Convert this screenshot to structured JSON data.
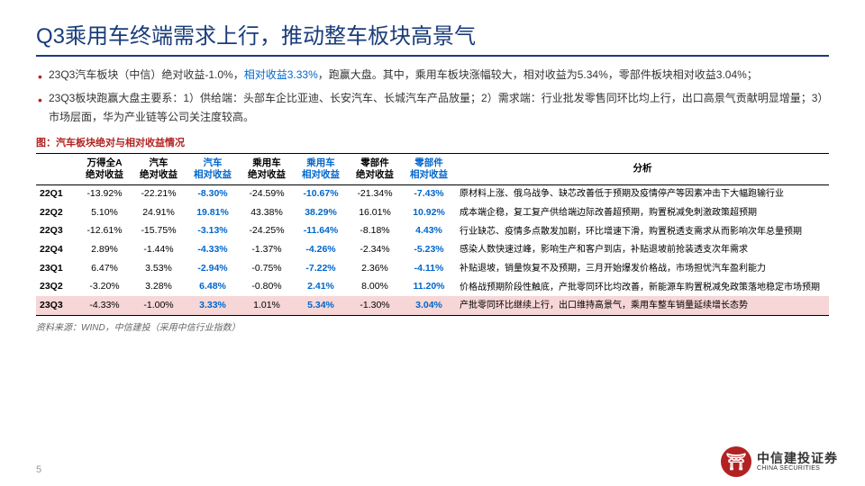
{
  "title": "Q3乘用车终端需求上行，推动整车板块高景气",
  "bullets": [
    {
      "pre": "23Q3汽车板块（中信）绝对收益-1.0%，",
      "hl": "相对收益3.33%",
      "post": "，跑赢大盘。其中，乘用车板块涨幅较大，相对收益为5.34%，零部件板块相对收益3.04%；"
    },
    {
      "pre": "23Q3板块跑赢大盘主要系：1）供给端：头部车企比亚迪、长安汽车、长城汽车产品放量；2）需求端：行业批发零售同环比均上行，出口高景气贡献明显增量；3）市场层面，华为产业链等公司关注度较高。",
      "hl": "",
      "post": ""
    }
  ],
  "chart_label": "图：汽车板块绝对与相对收益情况",
  "table": {
    "headers": [
      {
        "text": "",
        "blue": false
      },
      {
        "text": "万得全A\n绝对收益",
        "blue": false
      },
      {
        "text": "汽车\n绝对收益",
        "blue": false
      },
      {
        "text": "汽车\n相对收益",
        "blue": true
      },
      {
        "text": "乘用车\n绝对收益",
        "blue": false
      },
      {
        "text": "乘用车\n相对收益",
        "blue": true
      },
      {
        "text": "零部件\n绝对收益",
        "blue": false
      },
      {
        "text": "零部件\n相对收益",
        "blue": true
      },
      {
        "text": "分析",
        "blue": false
      }
    ],
    "blue_cols": [
      3,
      5,
      7
    ],
    "rows": [
      {
        "q": "22Q1",
        "v": [
          "-13.92%",
          "-22.21%",
          "-8.30%",
          "-24.59%",
          "-10.67%",
          "-21.34%",
          "-7.43%"
        ],
        "a": "原材料上涨、俄乌战争、缺芯改善低于预期及疫情停产等因素冲击下大幅跑输行业",
        "hl": false
      },
      {
        "q": "22Q2",
        "v": [
          "5.10%",
          "24.91%",
          "19.81%",
          "43.38%",
          "38.29%",
          "16.01%",
          "10.92%"
        ],
        "a": "成本端企稳，复工复产供给端边际改善超预期，购置税减免刺激政策超预期",
        "hl": false
      },
      {
        "q": "22Q3",
        "v": [
          "-12.61%",
          "-15.75%",
          "-3.13%",
          "-24.25%",
          "-11.64%",
          "-8.18%",
          "4.43%"
        ],
        "a": "行业缺芯、疫情多点散发加剧，环比增速下滑，购置税透支需求从而影响次年总量预期",
        "hl": false
      },
      {
        "q": "22Q4",
        "v": [
          "2.89%",
          "-1.44%",
          "-4.33%",
          "-1.37%",
          "-4.26%",
          "-2.34%",
          "-5.23%"
        ],
        "a": "感染人数快速过峰，影响生产和客户到店，补贴退坡前抢装透支次年需求",
        "hl": false
      },
      {
        "q": "23Q1",
        "v": [
          "6.47%",
          "3.53%",
          "-2.94%",
          "-0.75%",
          "-7.22%",
          "2.36%",
          "-4.11%"
        ],
        "a": "补贴退坡，销量恢复不及预期，三月开始爆发价格战，市场担忧汽车盈利能力",
        "hl": false
      },
      {
        "q": "23Q2",
        "v": [
          "-3.20%",
          "3.28%",
          "6.48%",
          "-0.80%",
          "2.41%",
          "8.00%",
          "11.20%"
        ],
        "a": "价格战预期阶段性触底，产批零同环比均改善，新能源车购置税减免政策落地稳定市场预期",
        "hl": false
      },
      {
        "q": "23Q3",
        "v": [
          "-4.33%",
          "-1.00%",
          "3.33%",
          "1.01%",
          "5.34%",
          "-1.30%",
          "3.04%"
        ],
        "a": "产批零同环比继续上行，出口维持高景气，乘用车整车销量延续增长态势",
        "hl": true
      }
    ]
  },
  "source": "资料来源：WIND，中信建投（采用中信行业指数）",
  "page_num": "5",
  "logo": {
    "glyph": "⛩",
    "cn": "中信建投证券",
    "en": "CHINA SECURITIES"
  },
  "colors": {
    "title": "#1a3d7a",
    "accent_red": "#b22222",
    "link_blue": "#0066cc",
    "row_highlight": "#f6d6d6"
  }
}
